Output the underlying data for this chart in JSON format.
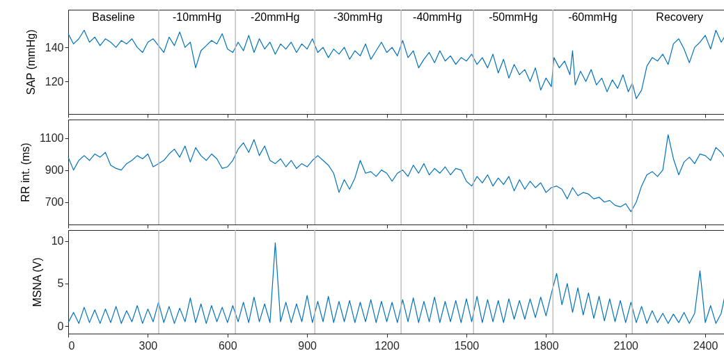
{
  "chart_data": [
    {
      "type": "line",
      "ylabel": "SAP (mmHg)",
      "xlim": [
        0,
        2481
      ],
      "xticks": [
        0,
        300,
        600,
        900,
        1200,
        1500,
        1800,
        2100,
        2400
      ],
      "ylim": [
        101,
        162
      ],
      "yticks": [
        120,
        140
      ],
      "tick_labels": "y",
      "series": [
        {
          "color": "#0072bd",
          "x": [
            0,
            20,
            40,
            60,
            80,
            100,
            120,
            140,
            160,
            180,
            200,
            220,
            240,
            260,
            280,
            300,
            320,
            340,
            360,
            380,
            400,
            420,
            440,
            460,
            480,
            500,
            520,
            540,
            560,
            580,
            600,
            620,
            640,
            660,
            680,
            700,
            720,
            740,
            760,
            780,
            800,
            820,
            840,
            860,
            880,
            900,
            920,
            940,
            960,
            980,
            1000,
            1020,
            1040,
            1060,
            1080,
            1100,
            1120,
            1140,
            1160,
            1180,
            1200,
            1220,
            1240,
            1260,
            1280,
            1300,
            1320,
            1340,
            1360,
            1380,
            1400,
            1420,
            1440,
            1460,
            1480,
            1500,
            1520,
            1540,
            1560,
            1580,
            1600,
            1620,
            1640,
            1660,
            1680,
            1700,
            1720,
            1740,
            1760,
            1780,
            1800,
            1820,
            1830,
            1850,
            1870,
            1890,
            1900,
            1910,
            1930,
            1950,
            1970,
            1990,
            2010,
            2030,
            2050,
            2070,
            2090,
            2110,
            2125,
            2140,
            2160,
            2180,
            2200,
            2220,
            2240,
            2260,
            2280,
            2300,
            2320,
            2340,
            2360,
            2380,
            2400,
            2420,
            2440,
            2460,
            2480
          ],
          "values": [
            148,
            142,
            145,
            150,
            143,
            146,
            141,
            145,
            143,
            140,
            144,
            142,
            145,
            140,
            137,
            143,
            145,
            141,
            137,
            146,
            141,
            149,
            140,
            143,
            128,
            138,
            141,
            144,
            142,
            148,
            139,
            137,
            143,
            138,
            147,
            137,
            145,
            139,
            143,
            136,
            142,
            139,
            143,
            137,
            142,
            139,
            145,
            137,
            140,
            134,
            139,
            136,
            140,
            133,
            138,
            135,
            142,
            133,
            138,
            143,
            137,
            140,
            135,
            144,
            134,
            138,
            128,
            133,
            137,
            131,
            138,
            132,
            135,
            130,
            134,
            132,
            136,
            130,
            134,
            128,
            136,
            125,
            133,
            122,
            130,
            124,
            127,
            120,
            128,
            115,
            122,
            117,
            134,
            128,
            132,
            124,
            138,
            118,
            126,
            120,
            127,
            118,
            122,
            114,
            121,
            116,
            124,
            114,
            119,
            110,
            115,
            129,
            134,
            132,
            136,
            130,
            142,
            145,
            139,
            131,
            140,
            143,
            147,
            139,
            150,
            143,
            148
          ]
        }
      ],
      "ref_lines": [
        {
          "axis": "x",
          "value": 341,
          "color": "#bfbfbf"
        },
        {
          "axis": "x",
          "value": 630,
          "color": "#bfbfbf"
        },
        {
          "axis": "x",
          "value": 929,
          "color": "#bfbfbf"
        },
        {
          "axis": "x",
          "value": 1254,
          "color": "#bfbfbf"
        },
        {
          "axis": "x",
          "value": 1527,
          "color": "#bfbfbf"
        },
        {
          "axis": "x",
          "value": 1826,
          "color": "#bfbfbf"
        },
        {
          "axis": "x",
          "value": 2125,
          "color": "#bfbfbf"
        }
      ],
      "annotations": [
        "Baseline",
        "-10mmHg",
        "-20mmHg",
        "-30mmHg",
        "-40mmHg",
        "-50mmHg",
        "-60mmHg",
        "Recovery"
      ]
    },
    {
      "type": "line",
      "ylabel": "RR int. (ms)",
      "xlim": [
        0,
        2481
      ],
      "xticks": [
        0,
        300,
        600,
        900,
        1200,
        1500,
        1800,
        2100,
        2400
      ],
      "ylim": [
        560,
        1215
      ],
      "yticks": [
        700,
        900,
        1100
      ],
      "tick_labels": "y",
      "series": [
        {
          "color": "#0072bd",
          "x": [
            0,
            20,
            40,
            60,
            80,
            100,
            120,
            140,
            160,
            180,
            200,
            220,
            240,
            260,
            280,
            300,
            320,
            340,
            360,
            380,
            400,
            420,
            440,
            460,
            480,
            500,
            520,
            540,
            560,
            580,
            600,
            620,
            640,
            660,
            680,
            700,
            720,
            740,
            760,
            780,
            800,
            820,
            840,
            860,
            880,
            900,
            920,
            940,
            960,
            980,
            1000,
            1020,
            1040,
            1060,
            1080,
            1100,
            1120,
            1140,
            1160,
            1180,
            1200,
            1220,
            1240,
            1260,
            1280,
            1300,
            1320,
            1340,
            1360,
            1380,
            1400,
            1420,
            1440,
            1460,
            1480,
            1500,
            1520,
            1540,
            1560,
            1580,
            1600,
            1620,
            1640,
            1660,
            1680,
            1700,
            1720,
            1740,
            1760,
            1780,
            1800,
            1820,
            1840,
            1860,
            1880,
            1900,
            1920,
            1940,
            1960,
            1980,
            2000,
            2020,
            2040,
            2060,
            2080,
            2100,
            2120,
            2140,
            2160,
            2180,
            2200,
            2220,
            2240,
            2260,
            2280,
            2300,
            2320,
            2340,
            2360,
            2380,
            2400,
            2420,
            2440,
            2460,
            2480
          ],
          "values": [
            980,
            900,
            960,
            990,
            960,
            1000,
            980,
            1010,
            930,
            910,
            900,
            940,
            960,
            990,
            970,
            1000,
            920,
            940,
            960,
            1000,
            1030,
            980,
            1050,
            950,
            1040,
            990,
            960,
            1000,
            970,
            910,
            920,
            960,
            1030,
            1070,
            1010,
            1090,
            990,
            1050,
            960,
            940,
            970,
            920,
            960,
            910,
            940,
            920,
            960,
            990,
            960,
            930,
            880,
            760,
            840,
            780,
            850,
            960,
            880,
            890,
            860,
            900,
            880,
            830,
            880,
            900,
            860,
            930,
            880,
            940,
            870,
            910,
            880,
            920,
            870,
            910,
            900,
            830,
            800,
            860,
            820,
            870,
            800,
            850,
            810,
            860,
            770,
            840,
            780,
            830,
            790,
            820,
            760,
            790,
            800,
            780,
            720,
            790,
            740,
            760,
            750,
            720,
            730,
            700,
            710,
            680,
            670,
            690,
            640,
            700,
            800,
            870,
            890,
            860,
            900,
            1120,
            970,
            870,
            950,
            980,
            940,
            1000,
            990,
            960,
            1040,
            1010,
            960
          ]
        }
      ],
      "ref_lines": [
        {
          "axis": "x",
          "value": 341,
          "color": "#bfbfbf"
        },
        {
          "axis": "x",
          "value": 630,
          "color": "#bfbfbf"
        },
        {
          "axis": "x",
          "value": 929,
          "color": "#bfbfbf"
        },
        {
          "axis": "x",
          "value": 1254,
          "color": "#bfbfbf"
        },
        {
          "axis": "x",
          "value": 1527,
          "color": "#bfbfbf"
        },
        {
          "axis": "x",
          "value": 1826,
          "color": "#bfbfbf"
        },
        {
          "axis": "x",
          "value": 2125,
          "color": "#bfbfbf"
        }
      ]
    },
    {
      "type": "line",
      "ylabel": "MSNA (V)",
      "xlim": [
        0,
        2481
      ],
      "xticks": [
        0,
        300,
        600,
        900,
        1200,
        1500,
        1800,
        2100,
        2400
      ],
      "ylim": [
        -0.9,
        11.3
      ],
      "yticks": [
        0,
        5,
        10
      ],
      "series": [
        {
          "color": "#0072bd",
          "x": [
            0,
            20,
            40,
            60,
            80,
            100,
            120,
            140,
            160,
            180,
            200,
            220,
            240,
            260,
            280,
            300,
            320,
            340,
            360,
            380,
            400,
            420,
            440,
            460,
            480,
            500,
            520,
            540,
            560,
            580,
            600,
            620,
            640,
            660,
            680,
            700,
            720,
            740,
            760,
            780,
            800,
            820,
            840,
            860,
            880,
            900,
            920,
            940,
            960,
            980,
            1000,
            1020,
            1040,
            1060,
            1080,
            1100,
            1120,
            1140,
            1160,
            1180,
            1200,
            1220,
            1240,
            1260,
            1280,
            1300,
            1320,
            1340,
            1360,
            1380,
            1400,
            1420,
            1440,
            1460,
            1480,
            1500,
            1520,
            1540,
            1560,
            1580,
            1600,
            1620,
            1640,
            1660,
            1680,
            1700,
            1720,
            1740,
            1760,
            1780,
            1800,
            1820,
            1840,
            1860,
            1880,
            1900,
            1920,
            1940,
            1960,
            1980,
            2000,
            2020,
            2040,
            2060,
            2080,
            2100,
            2120,
            2140,
            2160,
            2180,
            2200,
            2220,
            2240,
            2260,
            2280,
            2300,
            2320,
            2340,
            2360,
            2380,
            2400,
            2420,
            2440,
            2460,
            2480
          ],
          "values": [
            0.4,
            1.6,
            0.3,
            2.2,
            0.4,
            1.9,
            0.3,
            2.0,
            0.4,
            2.3,
            0.3,
            1.8,
            0.5,
            2.4,
            0.3,
            2.0,
            0.5,
            2.8,
            0.4,
            2.3,
            0.3,
            2.1,
            0.5,
            3.3,
            0.4,
            2.6,
            0.3,
            2.4,
            0.5,
            2.2,
            0.4,
            2.4,
            0.5,
            2.8,
            0.4,
            3.4,
            0.5,
            2.6,
            0.4,
            9.8,
            0.5,
            2.8,
            0.4,
            2.6,
            0.5,
            3.6,
            0.4,
            2.9,
            0.5,
            3.5,
            0.4,
            2.9,
            0.5,
            3.0,
            0.4,
            2.8,
            0.5,
            3.1,
            0.4,
            2.9,
            0.5,
            2.8,
            0.4,
            3.1,
            0.5,
            3.3,
            0.4,
            2.9,
            0.5,
            3.4,
            0.4,
            2.9,
            0.5,
            3.0,
            0.4,
            3.2,
            0.5,
            3.5,
            0.4,
            3.1,
            0.5,
            3.0,
            0.4,
            3.2,
            0.8,
            3.0,
            0.8,
            3.2,
            1.0,
            3.4,
            1.2,
            3.8,
            6.2,
            2.5,
            5.0,
            1.6,
            4.5,
            1.3,
            3.9,
            0.9,
            3.5,
            0.6,
            3.2,
            0.5,
            3.0,
            0.4,
            2.8,
            0.4,
            2.3,
            0.3,
            1.8,
            0.4,
            1.5,
            0.3,
            1.4,
            0.4,
            1.6,
            0.3,
            1.5,
            6.5,
            0.4,
            2.4,
            0.3,
            1.5,
            4.5
          ]
        }
      ],
      "ref_lines": [
        {
          "axis": "x",
          "value": 341,
          "color": "#bfbfbf"
        },
        {
          "axis": "x",
          "value": 630,
          "color": "#bfbfbf"
        },
        {
          "axis": "x",
          "value": 929,
          "color": "#bfbfbf"
        },
        {
          "axis": "x",
          "value": 1254,
          "color": "#bfbfbf"
        },
        {
          "axis": "x",
          "value": 1527,
          "color": "#bfbfbf"
        },
        {
          "axis": "x",
          "value": 1826,
          "color": "#bfbfbf"
        },
        {
          "axis": "x",
          "value": 2125,
          "color": "#bfbfbf"
        }
      ]
    }
  ]
}
